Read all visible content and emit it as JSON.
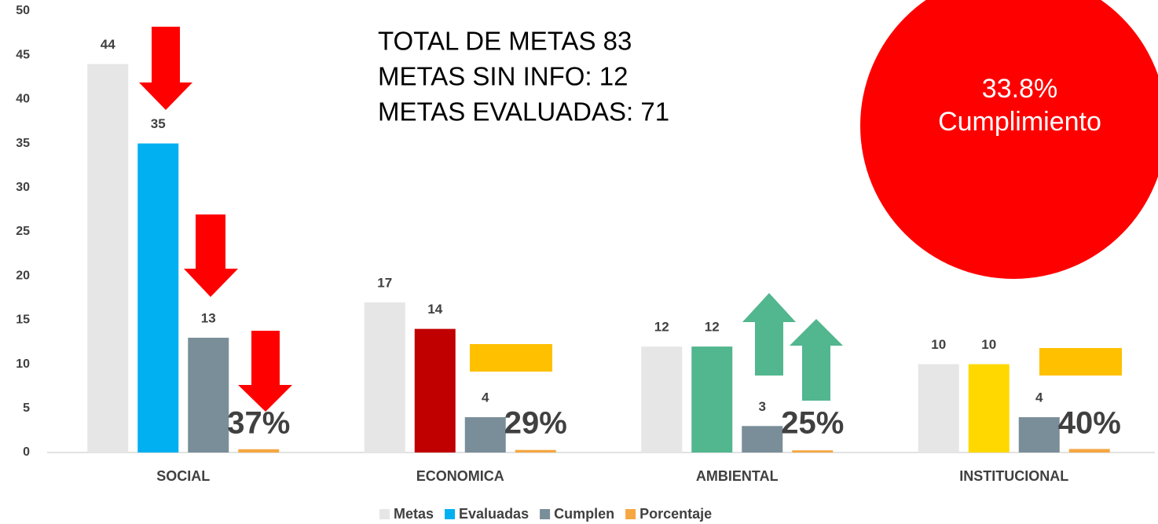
{
  "chart_data": {
    "type": "bar",
    "categories": [
      "SOCIAL",
      "ECONOMICA",
      "AMBIENTAL",
      "INSTITUCIONAL"
    ],
    "series": [
      {
        "name": "Metas",
        "color": "#E7E6E6",
        "values": [
          44,
          17,
          12,
          10
        ]
      },
      {
        "name": "Evaluadas",
        "color": "#00B0F0",
        "colors": [
          "#00B0F0",
          "#C00000",
          "#52B68E",
          "#FFD800"
        ],
        "values": [
          35,
          14,
          12,
          10
        ]
      },
      {
        "name": "Cumplen",
        "color": "#7A8E99",
        "values": [
          13,
          4,
          3,
          4
        ]
      },
      {
        "name": "Porcentaje",
        "color": "#F5A742",
        "values": [
          0.37,
          0.29,
          0.25,
          0.4
        ],
        "value_labels": [
          "37%",
          "29%",
          "25%",
          "40%"
        ]
      }
    ],
    "ylim": [
      0,
      50
    ],
    "yticks": [
      0,
      5,
      10,
      15,
      20,
      25,
      30,
      35,
      40,
      45,
      50
    ],
    "grid": false,
    "legend": "bottom",
    "annotations": [
      "TOTAL DE METAS 83",
      "METAS SIN INFO: 12",
      "METAS EVALUADAS: 71"
    ],
    "callout": [
      "33.8%",
      "Cumplimiento"
    ]
  }
}
